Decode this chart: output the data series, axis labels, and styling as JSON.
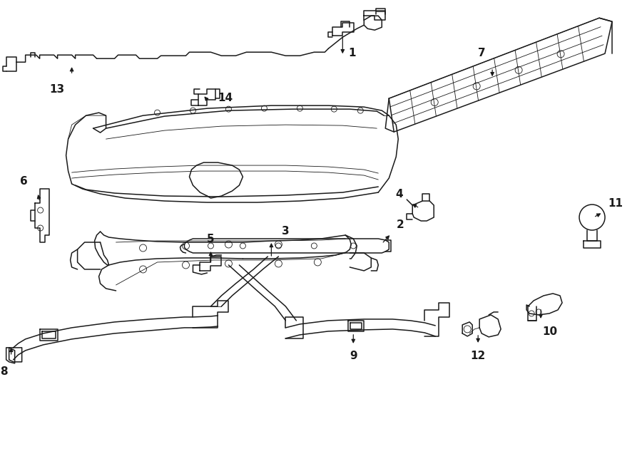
{
  "bg_color": "#ffffff",
  "line_color": "#1a1a1a",
  "lw": 1.1,
  "lw_thin": 0.6,
  "fig_w": 9.0,
  "fig_h": 6.61,
  "dpi": 100,
  "font_size": 10
}
